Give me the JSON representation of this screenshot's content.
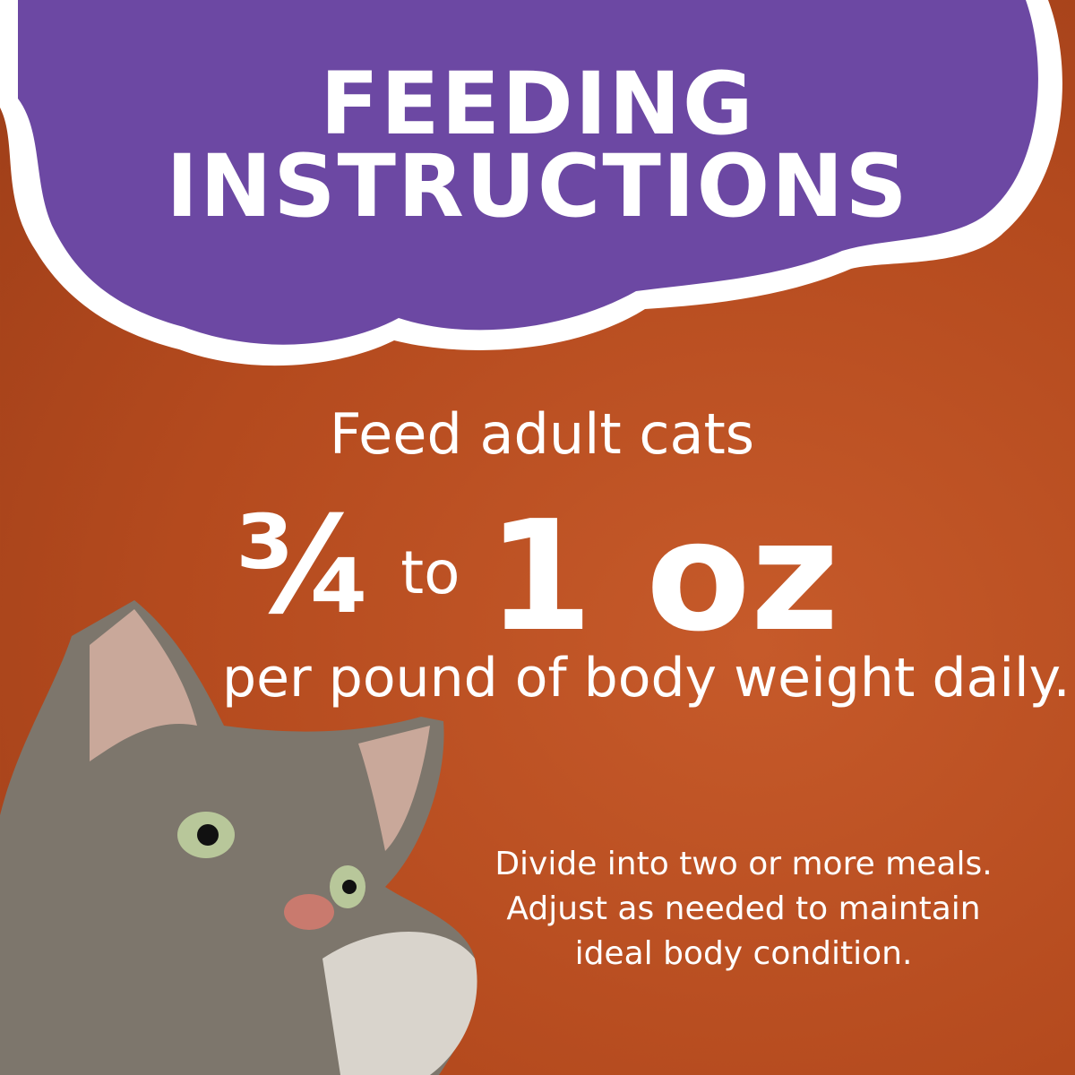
{
  "heading": {
    "line1": "FEEDING",
    "line2": "INSTRUCTIONS"
  },
  "instructions": {
    "intro": "Feed adult cats",
    "amount_fraction": "¾",
    "amount_to": "to",
    "amount_value": "1 oz",
    "per": "per pound of body weight daily.",
    "note": "Divide into two or more meals. Adjust as needed to maintain ideal body condition."
  },
  "colors": {
    "background": "#b44a1e",
    "cloud": "#6c48a3",
    "outline": "#ffffff"
  }
}
